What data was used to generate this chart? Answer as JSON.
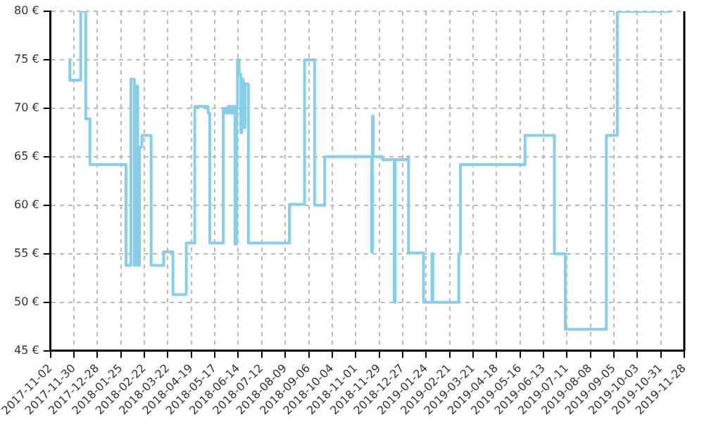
{
  "chart_data": {
    "type": "step",
    "color": "#87ceeb",
    "x": [
      "2017-11-24",
      "2017-11-25",
      "2017-12-08",
      "2017-12-14",
      "2017-12-19",
      "2018-01-31",
      "2018-02-06",
      "2018-02-10",
      "2018-02-11",
      "2018-02-14",
      "2018-02-16",
      "2018-02-19",
      "2018-03-02",
      "2018-03-17",
      "2018-03-28",
      "2018-04-13",
      "2018-04-23",
      "2018-05-09",
      "2018-05-11",
      "2018-05-27",
      "2018-05-30",
      "2018-06-02",
      "2018-06-05",
      "2018-06-07",
      "2018-06-10",
      "2018-06-12",
      "2018-06-13",
      "2018-06-15",
      "2018-06-17",
      "2018-06-18",
      "2018-06-20",
      "2018-06-22",
      "2018-06-26",
      "2018-08-14",
      "2018-09-01",
      "2018-09-13",
      "2018-09-25",
      "2018-11-20",
      "2018-11-21",
      "2018-11-22",
      "2018-12-03",
      "2018-12-17",
      "2018-12-18",
      "2019-01-02",
      "2019-01-03",
      "2019-01-21",
      "2019-01-31",
      "2019-02-01",
      "2019-03-04",
      "2019-03-06",
      "2019-05-22",
      "2019-06-26",
      "2019-07-09",
      "2019-08-27",
      "2019-09-09",
      "2019-11-13"
    ],
    "values": [
      75,
      72.9,
      80,
      68.9,
      64.2,
      53.8,
      73,
      53.8,
      72.3,
      53.8,
      66,
      67.2,
      53.8,
      55.2,
      50.8,
      56.1,
      70.2,
      69.5,
      56.1,
      70,
      69.5,
      70.2,
      69.5,
      70.2,
      56,
      70,
      75,
      73.5,
      67.5,
      73,
      68,
      72.5,
      56.1,
      60.1,
      75,
      60,
      65,
      55.2,
      69.2,
      65,
      64.7,
      50,
      64.7,
      65,
      55.1,
      50,
      55,
      50,
      55,
      64.2,
      67.2,
      55,
      47.2,
      67.2,
      80,
      80
    ],
    "xlim": [
      "2017-11-02",
      "2019-11-28"
    ],
    "xticks": [
      "2017-11-02",
      "2017-11-30",
      "2017-12-28",
      "2018-01-25",
      "2018-02-22",
      "2018-03-22",
      "2018-04-19",
      "2018-05-17",
      "2018-06-14",
      "2018-07-12",
      "2018-08-09",
      "2018-09-06",
      "2018-10-04",
      "2018-11-01",
      "2018-11-29",
      "2018-12-27",
      "2019-01-24",
      "2019-02-21",
      "2019-03-21",
      "2019-04-18",
      "2019-05-16",
      "2019-06-13",
      "2019-07-11",
      "2019-08-08",
      "2019-09-05",
      "2019-10-03",
      "2019-10-31",
      "2019-11-28"
    ],
    "ylim": [
      45,
      80
    ],
    "yticks": [
      {
        "value": 45,
        "label": "45 €"
      },
      {
        "value": 50,
        "label": "50 €"
      },
      {
        "value": 55,
        "label": "55 €"
      },
      {
        "value": 60,
        "label": "60 €"
      },
      {
        "value": 65,
        "label": "65 €"
      },
      {
        "value": 70,
        "label": "70 €"
      },
      {
        "value": 75,
        "label": "75 €"
      },
      {
        "value": 80,
        "label": "80 €"
      }
    ],
    "grid": true
  }
}
